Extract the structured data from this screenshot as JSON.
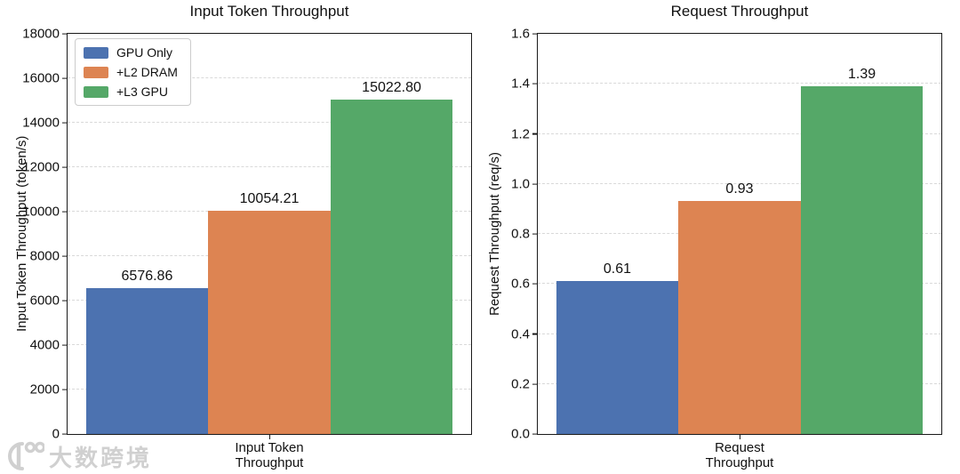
{
  "figure": {
    "background": "#ffffff"
  },
  "colors": {
    "bar_series": [
      "#4C72B0",
      "#DD8452",
      "#55A868"
    ],
    "grid": "#d9d9d9",
    "axis": "#1a1a1a",
    "watermark": "#cccccc"
  },
  "legend": {
    "position": "upper-left",
    "entries": [
      "GPU Only",
      "+L2 DRAM",
      "+L3 GPU"
    ]
  },
  "watermark": {
    "logo": "100",
    "text": "大数跨境"
  },
  "chart_data": [
    {
      "type": "bar",
      "title": "Input Token Throughput",
      "ylabel": "Input Token Throughput (token/s)",
      "xlabel": "",
      "xtick_label": "Input Token\nThroughput",
      "categories": [
        "GPU Only",
        "+L2 DRAM",
        "+L3 GPU"
      ],
      "values": [
        6576.86,
        10054.21,
        15022.8
      ],
      "value_labels": [
        "6576.86",
        "10054.21",
        "15022.80"
      ],
      "ylim": [
        0,
        18000
      ],
      "yticks": [
        "0",
        "2000",
        "4000",
        "6000",
        "8000",
        "10000",
        "12000",
        "14000",
        "16000",
        "18000"
      ],
      "grid": "horizontal-dashed",
      "legend": true
    },
    {
      "type": "bar",
      "title": "Request Throughput",
      "ylabel": "Request Throughput (req/s)",
      "xlabel": "",
      "xtick_label": "Request\nThroughput",
      "categories": [
        "GPU Only",
        "+L2 DRAM",
        "+L3 GPU"
      ],
      "values": [
        0.61,
        0.93,
        1.39
      ],
      "value_labels": [
        "0.61",
        "0.93",
        "1.39"
      ],
      "ylim": [
        0,
        1.6
      ],
      "yticks": [
        "0.0",
        "0.2",
        "0.4",
        "0.6",
        "0.8",
        "1.0",
        "1.2",
        "1.4",
        "1.6"
      ],
      "grid": "horizontal-dashed",
      "legend": false
    }
  ]
}
